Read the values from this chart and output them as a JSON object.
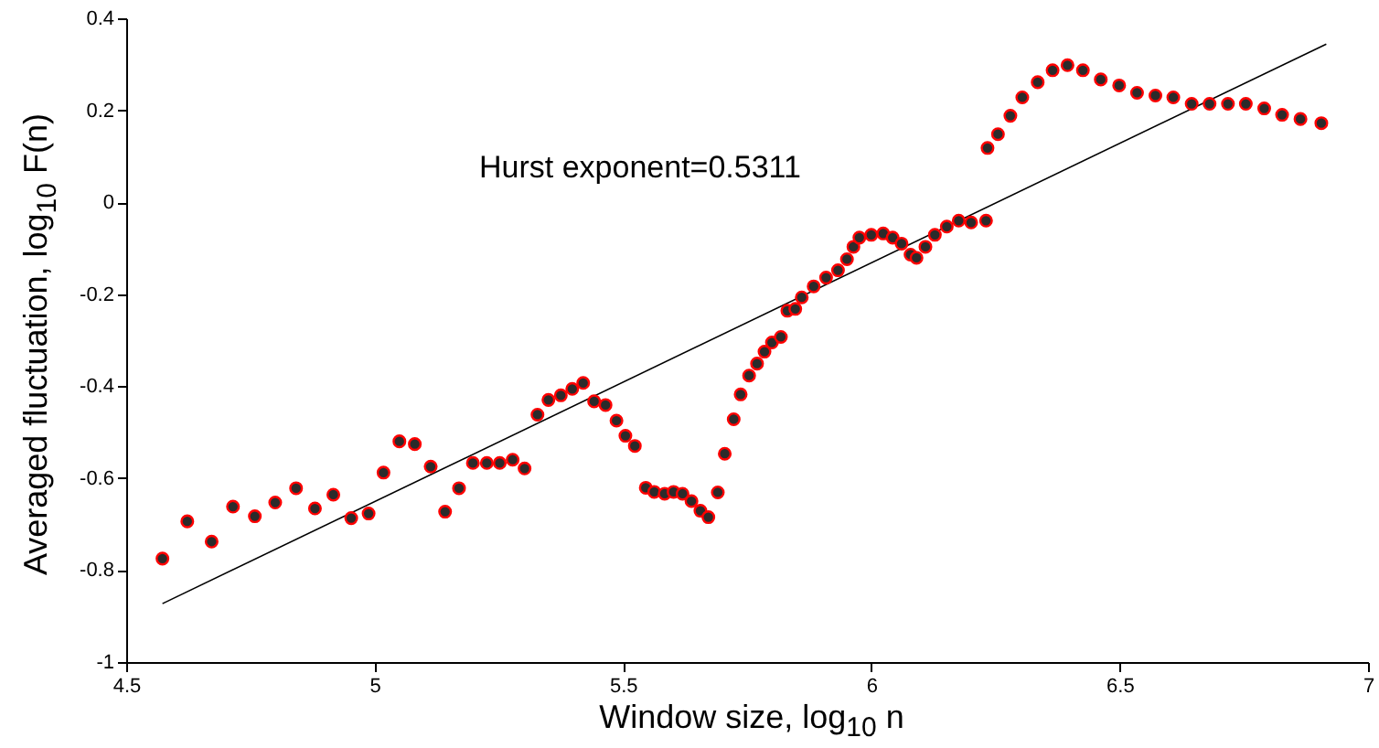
{
  "chart_data": {
    "type": "scatter",
    "xlabel": "Window size, log$_{10}$ n",
    "ylabel": "Averaged fluctuation, log$_{10}$ F(n)",
    "annotations": [
      "Hurst exponent=0.5311"
    ],
    "xlim": [
      4.5,
      7
    ],
    "ylim": [
      -1,
      0.4
    ],
    "xticks": [
      4.5,
      5,
      5.5,
      6,
      6.5,
      7
    ],
    "yticks": [
      -1,
      -0.8,
      -0.6,
      -0.4,
      -0.2,
      0,
      0.2,
      0.4
    ],
    "grid": false,
    "series": [
      {
        "marker": "circle",
        "color": "#2b2b2b",
        "x": [
          4.573,
          4.623,
          4.672,
          4.715,
          4.759,
          4.8,
          4.842,
          4.88,
          4.917,
          4.953,
          4.988,
          5.018,
          5.05,
          5.081,
          5.113,
          5.142,
          5.17,
          5.198,
          5.226,
          5.252,
          5.278,
          5.302,
          5.328,
          5.35,
          5.375,
          5.398,
          5.42,
          5.442,
          5.465,
          5.487,
          5.505,
          5.524,
          5.546,
          5.563,
          5.584,
          5.602,
          5.62,
          5.638,
          5.656,
          5.672,
          5.691,
          5.705,
          5.723,
          5.737,
          5.754,
          5.77,
          5.785,
          5.8,
          5.818,
          5.831,
          5.847,
          5.86,
          5.884,
          5.909,
          5.933,
          5.951,
          5.964,
          5.976,
          6.0,
          6.024,
          6.043,
          6.061,
          6.079,
          6.091,
          6.109,
          6.128,
          6.152,
          6.176,
          6.201,
          6.231,
          6.234,
          6.255,
          6.28,
          6.304,
          6.335,
          6.365,
          6.395,
          6.426,
          6.462,
          6.499,
          6.535,
          6.572,
          6.608,
          6.645,
          6.681,
          6.718,
          6.754,
          6.791,
          6.827,
          6.864,
          6.906
        ],
        "values": [
          -0.775,
          -0.694,
          -0.738,
          -0.662,
          -0.683,
          -0.653,
          -0.622,
          -0.666,
          -0.636,
          -0.687,
          -0.677,
          -0.588,
          -0.52,
          -0.526,
          -0.575,
          -0.673,
          -0.622,
          -0.567,
          -0.567,
          -0.567,
          -0.56,
          -0.579,
          -0.462,
          -0.43,
          -0.42,
          -0.406,
          -0.393,
          -0.433,
          -0.441,
          -0.475,
          -0.508,
          -0.53,
          -0.621,
          -0.63,
          -0.634,
          -0.63,
          -0.634,
          -0.65,
          -0.671,
          -0.685,
          -0.631,
          -0.547,
          -0.472,
          -0.418,
          -0.377,
          -0.351,
          -0.325,
          -0.305,
          -0.293,
          -0.236,
          -0.232,
          -0.207,
          -0.183,
          -0.164,
          -0.148,
          -0.124,
          -0.097,
          -0.077,
          -0.071,
          -0.068,
          -0.077,
          -0.09,
          -0.114,
          -0.121,
          -0.097,
          -0.071,
          -0.053,
          -0.04,
          -0.044,
          -0.04,
          0.118,
          0.148,
          0.188,
          0.228,
          0.261,
          0.287,
          0.298,
          0.287,
          0.267,
          0.254,
          0.238,
          0.232,
          0.228,
          0.214,
          0.214,
          0.214,
          0.214,
          0.204,
          0.19,
          0.181,
          0.172
        ]
      },
      {
        "type": "line",
        "color": "#000000",
        "x": [
          4.573,
          6.916
        ],
        "values": [
          -0.873,
          0.344
        ]
      }
    ]
  }
}
